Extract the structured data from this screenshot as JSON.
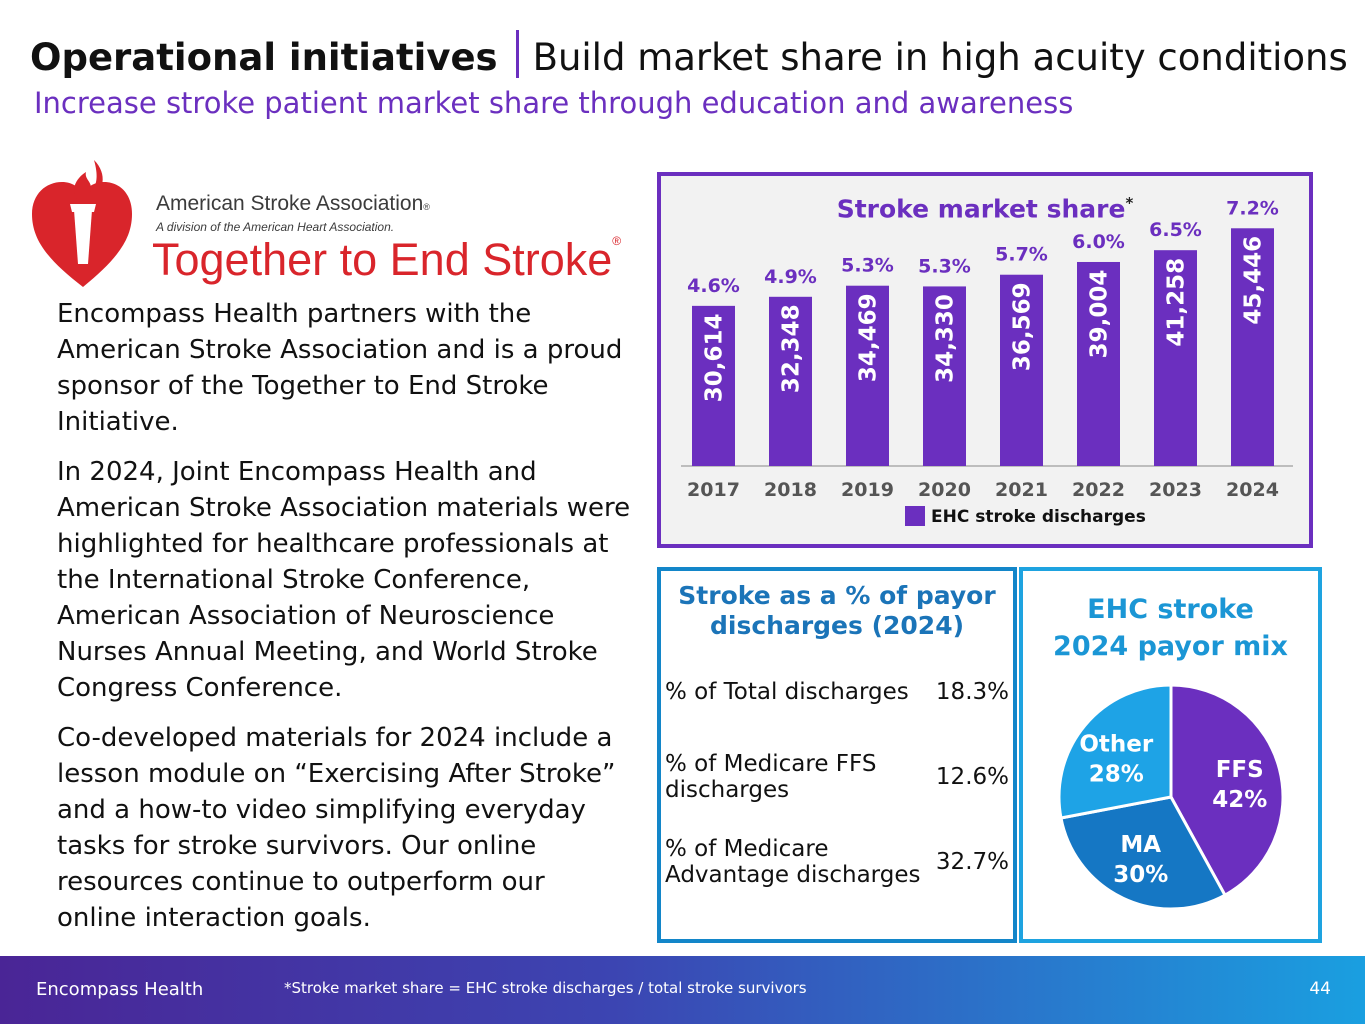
{
  "header": {
    "title_bold": "Operational initiatives",
    "title_rest": "Build market share in high acuity conditions",
    "subtitle": "Increase stroke patient market share through education and awareness"
  },
  "logo": {
    "org": "American Stroke Association",
    "division": "A division of the American Heart Association.",
    "tagline": "Together to End Stroke"
  },
  "body": {
    "p1": "Encompass Health partners with the American Stroke Association and is a proud sponsor of the Together to End Stroke Initiative.",
    "p2": "In 2024, Joint Encompass Health and American Stroke Association materials were highlighted for healthcare professionals at the International Stroke Conference, American Association of Neuroscience Nurses Annual Meeting, and World Stroke Congress Conference.",
    "p3": "Co-developed materials for 2024 include a lesson module on “Exercising After Stroke” and a how-to video simplifying everyday tasks for stroke survivors. Our online resources continue to outperform our online interaction goals."
  },
  "chart_data": [
    {
      "type": "bar",
      "title": "Stroke market share",
      "title_marker": "*",
      "categories": [
        "2017",
        "2018",
        "2019",
        "2020",
        "2021",
        "2022",
        "2023",
        "2024"
      ],
      "series": [
        {
          "name": "EHC stroke discharges",
          "values": [
            30614,
            32348,
            34469,
            34330,
            36569,
            39004,
            41258,
            45446
          ]
        }
      ],
      "value_labels": [
        "30,614",
        "32,348",
        "34,469",
        "34,330",
        "36,569",
        "39,004",
        "41,258",
        "45,446"
      ],
      "market_share_labels": [
        "4.6%",
        "4.9%",
        "5.3%",
        "5.3%",
        "5.7%",
        "6.0%",
        "6.5%",
        "7.2%"
      ],
      "legend": "EHC stroke discharges",
      "ylim": [
        0,
        52000
      ],
      "color": "#6b2fbf"
    },
    {
      "type": "pie",
      "title_line1": "EHC stroke",
      "title_line2": "2024 payor mix",
      "slices": [
        {
          "name": "FFS",
          "value": 42,
          "label": "42%",
          "color": "#6b2fbf"
        },
        {
          "name": "MA",
          "value": 30,
          "label": "30%",
          "color": "#1577c4"
        },
        {
          "name": "Other",
          "value": 28,
          "label": "28%",
          "color": "#1ea3e6"
        }
      ]
    }
  ],
  "payor_table": {
    "title_line1": "Stroke as a % of payor",
    "title_line2": "discharges (2024)",
    "rows": [
      {
        "label": "% of Total discharges",
        "value": "18.3%"
      },
      {
        "label": "% of Medicare FFS discharges",
        "value": "12.6%"
      },
      {
        "label": "% of Medicare Advantage discharges",
        "value": "32.7%"
      }
    ]
  },
  "footer": {
    "org": "Encompass Health",
    "footnote": "*Stroke market share = EHC stroke discharges / total stroke survivors",
    "page": "44"
  }
}
